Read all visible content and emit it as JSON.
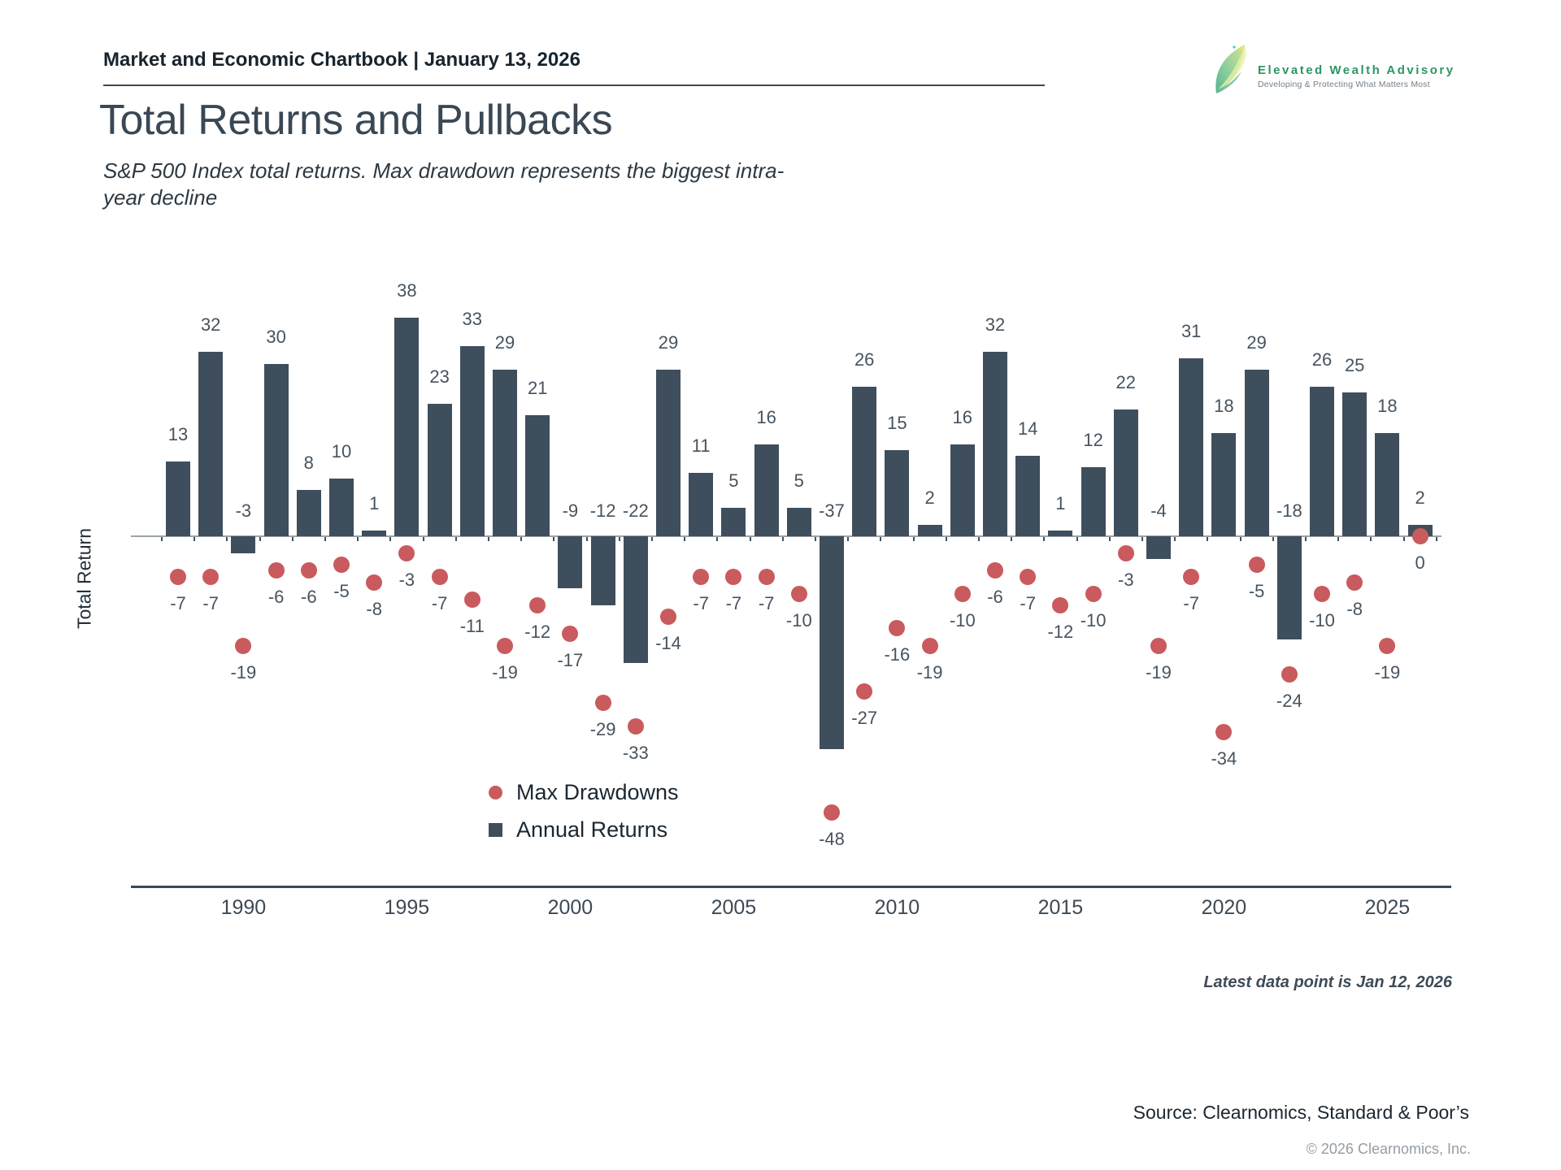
{
  "header": {
    "chartbook_label": "Market and Economic Chartbook | January 13, 2026"
  },
  "logo": {
    "name": "Elevated Wealth Advisory",
    "tagline": "Developing & Protecting What Matters Most",
    "accent_green": "#2a9662"
  },
  "title": "Total Returns and Pullbacks",
  "subtitle": "S&P 500 Index total returns. Max drawdown represents the biggest intra-year decline",
  "ylabel": "Total Return",
  "legend": {
    "max_drawdowns": "Max Drawdowns",
    "annual_returns": "Annual Returns"
  },
  "footnote": "Latest data point is Jan 12, 2026",
  "source": "Source: Clearnomics, Standard & Poor’s",
  "copyright": "© 2026 Clearnomics, Inc.",
  "colors": {
    "bar": "#3e4e5c",
    "dot": "#c95a5d",
    "axis": "#3a4a55",
    "zero_line": "#9aa4ab",
    "label_text": "#46535f"
  },
  "chart_data": {
    "type": "bar",
    "title": "Total Returns and Pullbacks",
    "subtitle": "S&P 500 Index total returns. Max drawdown represents the biggest intra-year decline",
    "ylabel": "Total Return",
    "xlabel": "",
    "grid": false,
    "legend_position": "inside-bottom-left",
    "x": [
      1988,
      1989,
      1990,
      1991,
      1992,
      1993,
      1994,
      1995,
      1996,
      1997,
      1998,
      1999,
      2000,
      2001,
      2002,
      2003,
      2004,
      2005,
      2006,
      2007,
      2008,
      2009,
      2010,
      2011,
      2012,
      2013,
      2014,
      2015,
      2016,
      2017,
      2018,
      2019,
      2020,
      2021,
      2022,
      2023,
      2024,
      2025,
      2026
    ],
    "series": [
      {
        "name": "Annual Returns",
        "type": "bar",
        "color": "#3e4e5c",
        "values": [
          13,
          32,
          -3,
          30,
          8,
          10,
          1,
          38,
          23,
          33,
          29,
          21,
          -9,
          -12,
          -22,
          29,
          11,
          5,
          16,
          5,
          -37,
          26,
          15,
          2,
          16,
          32,
          14,
          1,
          12,
          22,
          -4,
          31,
          18,
          29,
          -18,
          26,
          25,
          18,
          2
        ]
      },
      {
        "name": "Max Drawdowns",
        "type": "scatter",
        "color": "#c95a5d",
        "values": [
          -7,
          -7,
          -19,
          -6,
          -6,
          -5,
          -8,
          -3,
          -7,
          -11,
          -19,
          -12,
          -17,
          -29,
          -33,
          -14,
          -7,
          -7,
          -7,
          -10,
          -48,
          -27,
          -16,
          -19,
          -10,
          -6,
          -7,
          -12,
          -10,
          -3,
          -19,
          -7,
          -34,
          -5,
          -24,
          -10,
          -8,
          -19,
          0
        ]
      }
    ],
    "x_ticks": [
      1990,
      1995,
      2000,
      2005,
      2010,
      2015,
      2020,
      2025
    ],
    "note": "Latest data point is Jan 12, 2026"
  }
}
